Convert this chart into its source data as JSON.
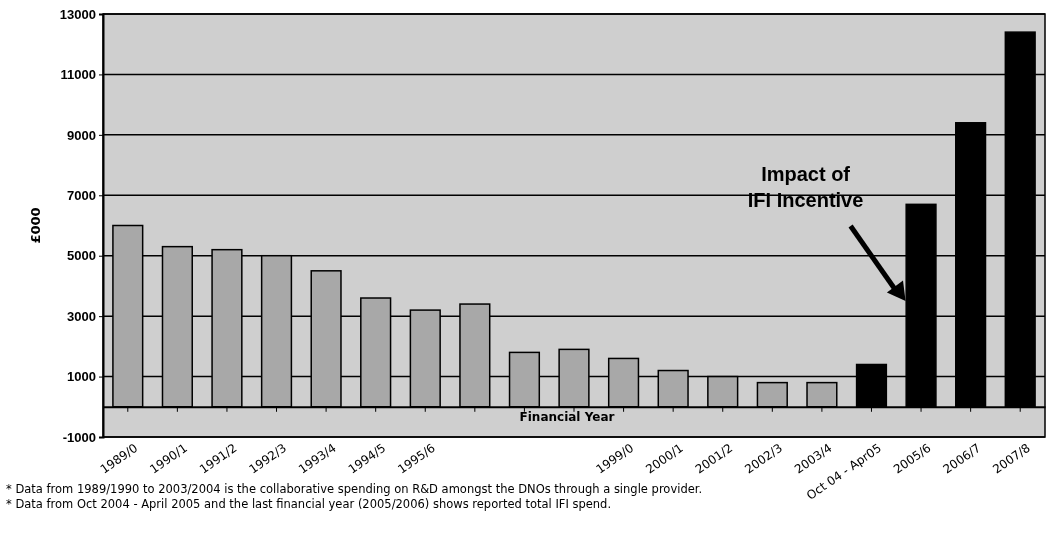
{
  "chart_data": {
    "type": "bar",
    "ylabel": "£000",
    "xlabel": "Financial Year",
    "categories": [
      "1989/0",
      "1990/1",
      "1991/2",
      "1992/3",
      "1993/4",
      "1994/5",
      "1995/6",
      null,
      null,
      null,
      "1999/0",
      "2000/1",
      "2001/2",
      "2002/3",
      "2003/4",
      "Oct 04 - Apr05",
      "2005/6",
      "2006/7",
      "2007/8"
    ],
    "values": [
      6000,
      5300,
      5200,
      5000,
      4500,
      3600,
      3200,
      3400,
      1800,
      1900,
      1600,
      1200,
      1000,
      800,
      800,
      1400,
      6700,
      9400,
      12400
    ],
    "colors": [
      "#a8a8a8",
      "#a8a8a8",
      "#a8a8a8",
      "#a8a8a8",
      "#a8a8a8",
      "#a8a8a8",
      "#a8a8a8",
      "#a8a8a8",
      "#a8a8a8",
      "#a8a8a8",
      "#a8a8a8",
      "#a8a8a8",
      "#a8a8a8",
      "#a8a8a8",
      "#a8a8a8",
      "#000000",
      "#000000",
      "#000000",
      "#000000"
    ],
    "ylim": [
      -1000,
      13000
    ],
    "yticks": [
      -1000,
      1000,
      3000,
      5000,
      7000,
      9000,
      11000,
      13000
    ],
    "grid": "y",
    "annotations": [
      "Impact of\nIFI Incentive",
      "* Data from 1989/1990 to 2003/2004 is the collaborative spending on R&D amongst the DNOs through a single provider.",
      "* Data from Oct 2004 - April 2005 and the last financial year (2005/2006) shows reported total IFI spend."
    ]
  }
}
